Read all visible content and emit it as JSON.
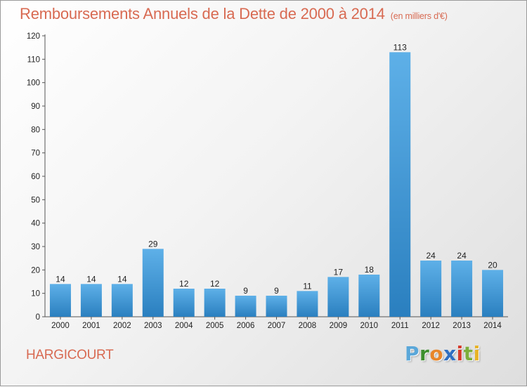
{
  "title": "Remboursements Annuels de la Dette de 2000 à 2014",
  "unit": "(en milliers d'€)",
  "commune": "HARGICOURT",
  "logo": {
    "letters": [
      "P",
      "r",
      "o",
      "x",
      "i",
      "t",
      "i"
    ],
    "colors": [
      "#5aa7d9",
      "#3d8f2f",
      "#e8862a",
      "#2f6fc2",
      "#d63b2c",
      "#7cae3a",
      "#e8b326"
    ]
  },
  "colors": {
    "title": "#d86a52",
    "bar_top": "#5eb0e8",
    "bar_bottom": "#2a7fbf"
  },
  "chart_data": {
    "type": "bar",
    "categories": [
      "2000",
      "2001",
      "2002",
      "2003",
      "2004",
      "2005",
      "2006",
      "2007",
      "2008",
      "2009",
      "2010",
      "2011",
      "2012",
      "2013",
      "2014"
    ],
    "values": [
      14,
      14,
      14,
      29,
      12,
      12,
      9,
      9,
      11,
      17,
      18,
      113,
      24,
      24,
      20
    ],
    "ylim": [
      0,
      120
    ],
    "yticks": [
      0,
      10,
      20,
      30,
      40,
      50,
      60,
      70,
      80,
      90,
      100,
      110,
      120
    ],
    "grid": false,
    "legend": "none"
  }
}
